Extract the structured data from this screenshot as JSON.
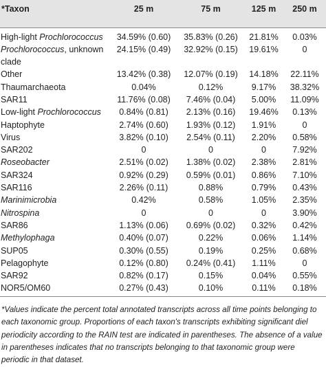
{
  "table": {
    "header": [
      "*Taxon",
      "25 m",
      "75 m",
      "125 m",
      "250 m"
    ],
    "rows": [
      {
        "taxon": [
          {
            "text": "High-light ",
            "italic": false
          },
          {
            "text": "Prochlorococcus",
            "italic": true
          }
        ],
        "values": [
          "34.59% (0.60)",
          "35.83% (0.26)",
          "21.81%",
          "0.03%"
        ]
      },
      {
        "taxon": [
          {
            "text": "Prochlorococcus",
            "italic": true
          },
          {
            "text": ", unknown clade",
            "italic": false
          }
        ],
        "values": [
          "24.15% (0.49)",
          "32.92% (0.15)",
          "19.61%",
          "0"
        ]
      },
      {
        "taxon": [
          {
            "text": "Other",
            "italic": false
          }
        ],
        "values": [
          "13.42% (0.38)",
          "12.07% (0.19)",
          "14.18%",
          "22.11%"
        ]
      },
      {
        "taxon": [
          {
            "text": "Thaumarchaeota",
            "italic": false
          }
        ],
        "values": [
          "0.04%",
          "0.12%",
          "9.17%",
          "38.32%"
        ]
      },
      {
        "taxon": [
          {
            "text": "SAR11",
            "italic": false
          }
        ],
        "values": [
          "11.76% (0.08)",
          "7.46% (0.04)",
          "5.00%",
          "11.09%"
        ]
      },
      {
        "taxon": [
          {
            "text": "Low-light ",
            "italic": false
          },
          {
            "text": "Prochlorococcus",
            "italic": true
          }
        ],
        "values": [
          "0.84% (0.81)",
          "2.13% (0.16)",
          "19.46%",
          "0.13%"
        ]
      },
      {
        "taxon": [
          {
            "text": "Haptophyte",
            "italic": false
          }
        ],
        "values": [
          "2.74% (0.60)",
          "1.93% (0.12)",
          "1.91%",
          "0"
        ]
      },
      {
        "taxon": [
          {
            "text": "Virus",
            "italic": false
          }
        ],
        "values": [
          "3.82% (0.10)",
          "2.54% (0.11)",
          "2.20%",
          "0.58%"
        ]
      },
      {
        "taxon": [
          {
            "text": "SAR202",
            "italic": false
          }
        ],
        "values": [
          "0",
          "0",
          "0",
          "7.92%"
        ]
      },
      {
        "taxon": [
          {
            "text": "Roseobacter",
            "italic": true
          }
        ],
        "values": [
          "2.51% (0.02)",
          "1.38% (0.02)",
          "2.38%",
          "2.81%"
        ]
      },
      {
        "taxon": [
          {
            "text": "SAR324",
            "italic": false
          }
        ],
        "values": [
          "0.92% (0.29)",
          "0.59% (0.01)",
          "0.86%",
          "7.10%"
        ]
      },
      {
        "taxon": [
          {
            "text": "SAR116",
            "italic": false
          }
        ],
        "values": [
          "2.26% (0.11)",
          "0.88%",
          "0.79%",
          "0.43%"
        ]
      },
      {
        "taxon": [
          {
            "text": "Marinimicrobia",
            "italic": true
          }
        ],
        "values": [
          "0.42%",
          "0.58%",
          "1.05%",
          "2.35%"
        ]
      },
      {
        "taxon": [
          {
            "text": "Nitrospina",
            "italic": true
          }
        ],
        "values": [
          "0",
          "0",
          "0",
          "3.90%"
        ]
      },
      {
        "taxon": [
          {
            "text": "SAR86",
            "italic": false
          }
        ],
        "values": [
          "1.13% (0.06)",
          "0.69% (0.02)",
          "0.32%",
          "0.42%"
        ]
      },
      {
        "taxon": [
          {
            "text": "Methylophaga",
            "italic": true
          }
        ],
        "values": [
          "0.40% (0.07)",
          "0.22%",
          "0.06%",
          "1.14%"
        ]
      },
      {
        "taxon": [
          {
            "text": "SUP05",
            "italic": false
          }
        ],
        "values": [
          "0.30% (0.55)",
          "0.19%",
          "0.25%",
          "0.68%"
        ]
      },
      {
        "taxon": [
          {
            "text": "Pelagophyte",
            "italic": false
          }
        ],
        "values": [
          "0.12% (0.80)",
          "0.24% (0.41)",
          "1.11%",
          "0"
        ]
      },
      {
        "taxon": [
          {
            "text": "SAR92",
            "italic": false
          }
        ],
        "values": [
          "0.82% (0.17)",
          "0.15%",
          "0.04%",
          "0.55%"
        ]
      },
      {
        "taxon": [
          {
            "text": "NOR5/OM60",
            "italic": false
          }
        ],
        "values": [
          "0.27% (0.43)",
          "0.10%",
          "0.11%",
          "0.18%"
        ]
      }
    ]
  },
  "footnote": "*Values indicate the percent total annotated transcripts across all time points belonging to each taxonomic group. Proportions of each taxon's transcripts exhibiting significant diel periodicity according to the RAIN test are indicated in parentheses. The absence of a value in parentheses indicates that no transcripts belonging to that taxonomic group were periodic in that dataset."
}
